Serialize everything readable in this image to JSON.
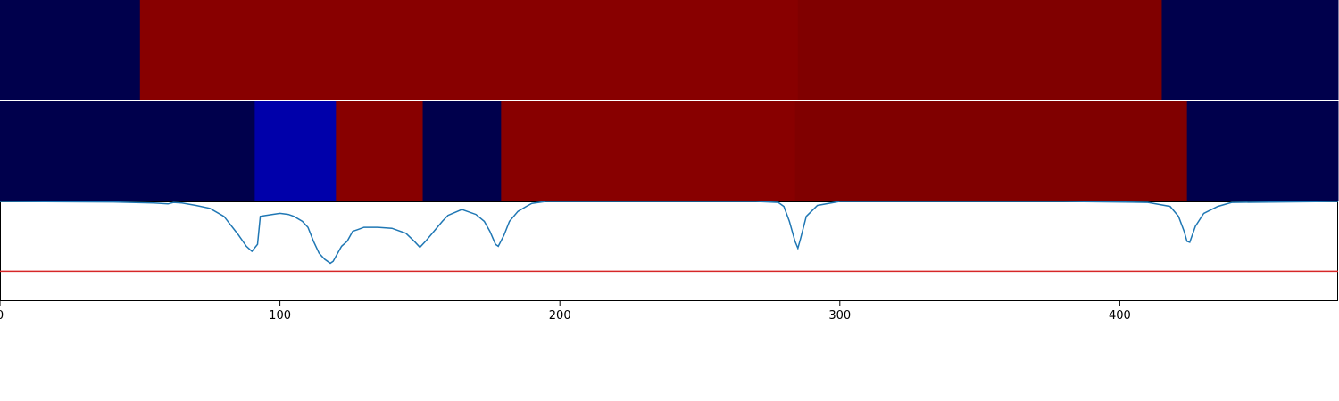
{
  "chart_data": [
    {
      "type": "heatmap",
      "x_range": [
        0,
        478
      ],
      "segments": [
        {
          "start": 0,
          "end": 50,
          "color": "#00004c"
        },
        {
          "start": 50,
          "end": 285,
          "color": "#880000"
        },
        {
          "start": 285,
          "end": 415,
          "color": "#800000"
        },
        {
          "start": 415,
          "end": 478,
          "color": "#00004c"
        }
      ]
    },
    {
      "type": "heatmap",
      "x_range": [
        0,
        478
      ],
      "segments": [
        {
          "start": 0,
          "end": 91,
          "color": "#00004c"
        },
        {
          "start": 91,
          "end": 120,
          "color": "#0000aa"
        },
        {
          "start": 120,
          "end": 151,
          "color": "#880000"
        },
        {
          "start": 151,
          "end": 179,
          "color": "#00004c"
        },
        {
          "start": 179,
          "end": 284,
          "color": "#880000"
        },
        {
          "start": 284,
          "end": 424,
          "color": "#800000"
        },
        {
          "start": 424,
          "end": 478,
          "color": "#00004c"
        }
      ]
    },
    {
      "type": "line",
      "xlim": [
        0,
        478
      ],
      "ylim": [
        0,
        1
      ],
      "x_ticks": [
        0,
        100,
        200,
        300,
        400
      ],
      "series": [
        {
          "color": "#1f77b4",
          "x": [
            0,
            40,
            55,
            60,
            62,
            65,
            70,
            75,
            80,
            85,
            88,
            90,
            92,
            93,
            95,
            100,
            103,
            105,
            108,
            110,
            112,
            114,
            116,
            118,
            119,
            120,
            122,
            124,
            126,
            128,
            130,
            135,
            140,
            145,
            148,
            150,
            152,
            155,
            158,
            160,
            165,
            170,
            173,
            175,
            177,
            178,
            180,
            182,
            185,
            188,
            190,
            195,
            220,
            270,
            278,
            280,
            282,
            284,
            285,
            286,
            288,
            292,
            300,
            380,
            410,
            418,
            421,
            423,
            424,
            425,
            427,
            430,
            435,
            440,
            478
          ],
          "y": [
            1.0,
            0.995,
            0.985,
            0.975,
            0.99,
            0.985,
            0.96,
            0.93,
            0.85,
            0.67,
            0.55,
            0.5,
            0.57,
            0.85,
            0.86,
            0.88,
            0.87,
            0.85,
            0.8,
            0.74,
            0.6,
            0.48,
            0.42,
            0.38,
            0.4,
            0.45,
            0.55,
            0.6,
            0.7,
            0.72,
            0.74,
            0.74,
            0.73,
            0.68,
            0.6,
            0.54,
            0.6,
            0.7,
            0.8,
            0.86,
            0.92,
            0.87,
            0.8,
            0.7,
            0.57,
            0.55,
            0.66,
            0.8,
            0.9,
            0.95,
            0.98,
            1.0,
            1.0,
            1.0,
            0.99,
            0.95,
            0.8,
            0.6,
            0.53,
            0.63,
            0.85,
            0.96,
            1.0,
            1.0,
            0.99,
            0.95,
            0.85,
            0.7,
            0.6,
            0.59,
            0.75,
            0.88,
            0.95,
            0.99,
            1.0
          ]
        },
        {
          "color": "#d62728",
          "x": [
            0,
            478
          ],
          "y": [
            0.3,
            0.3
          ]
        }
      ]
    }
  ]
}
